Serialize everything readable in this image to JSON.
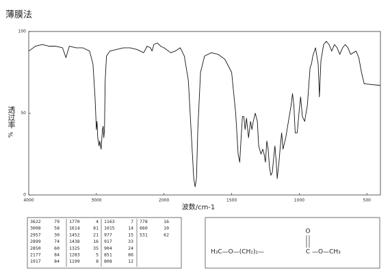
{
  "chart_data": {
    "type": "line",
    "title": "薄膜法",
    "y_label": "透过率",
    "y_unit": "%",
    "x_label": "波数/cm-1",
    "xlim": [
      4000,
      400
    ],
    "xticks": [
      4000,
      3000,
      2000,
      1500,
      1000,
      500
    ],
    "ylim": [
      0,
      100
    ],
    "yticks": [
      0,
      50,
      100
    ],
    "grid": false,
    "x": [
      4000,
      3900,
      3800,
      3700,
      3600,
      3500,
      3450,
      3400,
      3300,
      3200,
      3100,
      3050,
      3020,
      3000,
      2990,
      2980,
      2960,
      2950,
      2930,
      2910,
      2900,
      2890,
      2880,
      2870,
      2850,
      2800,
      2700,
      2600,
      2500,
      2400,
      2300,
      2250,
      2200,
      2177,
      2150,
      2100,
      2050,
      2000,
      1950,
      1917,
      1880,
      1850,
      1820,
      1800,
      1780,
      1770,
      1760,
      1750,
      1730,
      1700,
      1650,
      1600,
      1550,
      1500,
      1470,
      1452,
      1440,
      1430,
      1420,
      1410,
      1400,
      1390,
      1375,
      1360,
      1350,
      1340,
      1325,
      1310,
      1300,
      1283,
      1270,
      1260,
      1250,
      1240,
      1230,
      1220,
      1210,
      1199,
      1190,
      1180,
      1170,
      1163,
      1150,
      1140,
      1130,
      1120,
      1100,
      1080,
      1060,
      1050,
      1040,
      1030,
      1015,
      1000,
      990,
      977,
      960,
      940,
      920,
      910,
      900,
      880,
      860,
      851,
      840,
      820,
      800,
      780,
      760,
      740,
      720,
      700,
      680,
      660,
      640,
      620,
      600,
      580,
      560,
      540,
      520,
      400
    ],
    "series": [
      {
        "name": "spectrum",
        "color": "#111111",
        "values": [
          88,
          91,
          92,
          91,
          91,
          90,
          84,
          91,
          90,
          90,
          88,
          80,
          60,
          40,
          45,
          35,
          30,
          33,
          28,
          40,
          42,
          35,
          40,
          70,
          85,
          88,
          89,
          90,
          90,
          89,
          87,
          91,
          90,
          88,
          92,
          93,
          91,
          90,
          87,
          88,
          90,
          85,
          70,
          40,
          10,
          5,
          10,
          40,
          75,
          85,
          87,
          86,
          83,
          75,
          50,
          25,
          20,
          35,
          48,
          48,
          40,
          47,
          35,
          45,
          40,
          45,
          50,
          45,
          30,
          25,
          28,
          25,
          20,
          33,
          28,
          17,
          12,
          14,
          22,
          30,
          20,
          10,
          20,
          30,
          38,
          28,
          35,
          45,
          55,
          62,
          55,
          38,
          38,
          52,
          60,
          48,
          45,
          55,
          78,
          80,
          85,
          90,
          80,
          60,
          82,
          92,
          94,
          92,
          88,
          92,
          90,
          86,
          90,
          92,
          90,
          86,
          87,
          88,
          84,
          75,
          68,
          67
        ]
      }
    ]
  },
  "peak_table": {
    "rows": [
      [
        [
          "3622",
          "79"
        ],
        [
          "1770",
          "4"
        ],
        [
          "1163",
          "7"
        ],
        [
          "778",
          "16"
        ]
      ],
      [
        [
          "3008",
          "58"
        ],
        [
          "1614",
          "81"
        ],
        [
          "1015",
          "14"
        ],
        [
          "660",
          "10"
        ]
      ],
      [
        [
          "2957",
          "30"
        ],
        [
          "1452",
          "21"
        ],
        [
          "977",
          "15"
        ],
        [
          "531",
          "62"
        ]
      ],
      [
        [
          "2899",
          "74"
        ],
        [
          "1438",
          "16"
        ],
        [
          "917",
          "33"
        ]
      ],
      [
        [
          "2850",
          "60"
        ],
        [
          "1325",
          "35"
        ],
        [
          "904",
          "24"
        ]
      ],
      [
        [
          "2177",
          "84"
        ],
        [
          "1283",
          "5"
        ],
        [
          "851",
          "86"
        ]
      ],
      [
        [
          "1917",
          "84"
        ],
        [
          "1199",
          "8"
        ],
        [
          "808",
          "12"
        ]
      ]
    ]
  },
  "structure": {
    "left": "H₃C—O—(CH₂)₂—",
    "carbon": "C",
    "oxygen": "O",
    "right": "—O—CH₃"
  }
}
